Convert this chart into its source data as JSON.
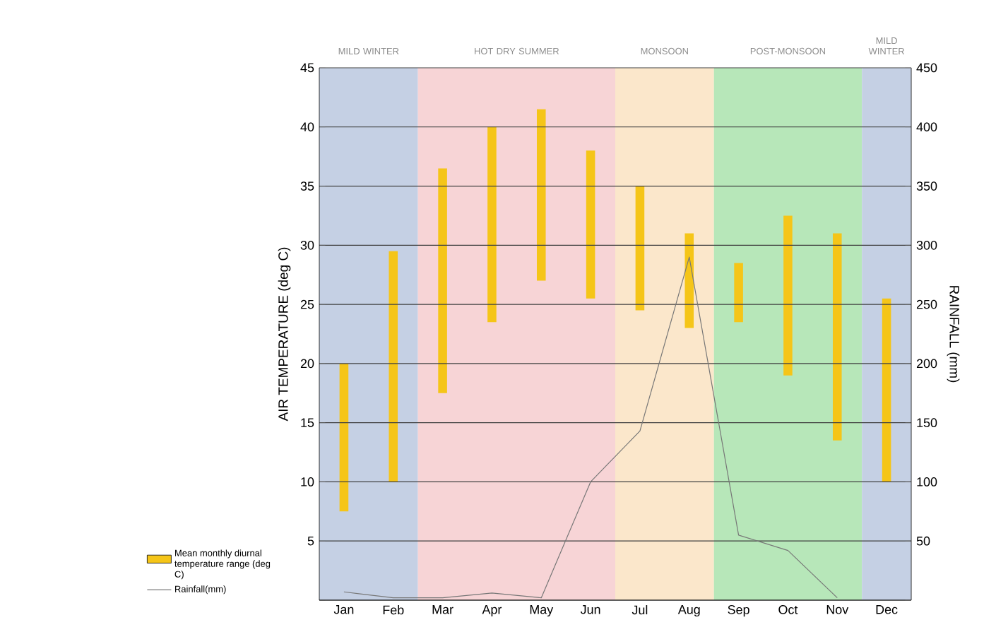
{
  "chart_data": {
    "type": "bar",
    "ylabel": "AIR TEMPERATURE (deg C)",
    "y2label": "RAINFALL (mm)",
    "categories": [
      "Jan",
      "Feb",
      "Mar",
      "Apr",
      "May",
      "Jun",
      "Jul",
      "Aug",
      "Sep",
      "Oct",
      "Nov",
      "Dec"
    ],
    "series": [
      {
        "name": "Mean monthly diurnal temperature range (deg C)",
        "color": "#f5c518",
        "base": [
          7.5,
          10,
          17.5,
          23.5,
          27,
          25.5,
          24.5,
          23,
          23.5,
          19,
          13.5,
          10
        ],
        "values": [
          12.5,
          19.5,
          19,
          16.5,
          14.5,
          12.5,
          10.5,
          8,
          5,
          13.5,
          17.5,
          15.5
        ]
      },
      {
        "name": "Rainfall(mm)",
        "type": "line",
        "axis": "y2",
        "color": "#777777",
        "values": [
          7,
          2,
          2,
          6,
          2,
          100,
          143,
          290,
          55,
          42,
          2,
          null
        ]
      }
    ],
    "ylim": [
      0,
      45
    ],
    "yticks": [
      {
        "value": 0,
        "label": null
      },
      5,
      10,
      15,
      20,
      25,
      30,
      35,
      40,
      45
    ],
    "y2lim": [
      0,
      450
    ],
    "y2ticks": [
      {
        "value": 0,
        "label": null
      },
      50,
      100,
      150,
      200,
      250,
      300,
      350,
      400,
      450
    ],
    "grid": "y",
    "legend": "bottom left",
    "marker": "none",
    "line_style": "solid",
    "bands": [
      {
        "axis": "x",
        "from": "Jan",
        "to": "Feb",
        "label": "MILD WINTER",
        "color": "#c5d0e4"
      },
      {
        "axis": "x",
        "from": "Mar",
        "to": "Jun",
        "label": "HOT DRY SUMMER",
        "color": "#f7d4d6"
      },
      {
        "axis": "x",
        "from": "Jul",
        "to": "Aug",
        "label": "MONSOON",
        "color": "#fbe7cb"
      },
      {
        "axis": "x",
        "from": "Sep",
        "to": "Nov",
        "label": "POST-MONSOON",
        "color": "#b7e7b9"
      },
      {
        "axis": "x",
        "from": "Dec",
        "to": "Dec",
        "label": "MILD WINTER",
        "color": "#c5d0e4"
      }
    ]
  }
}
